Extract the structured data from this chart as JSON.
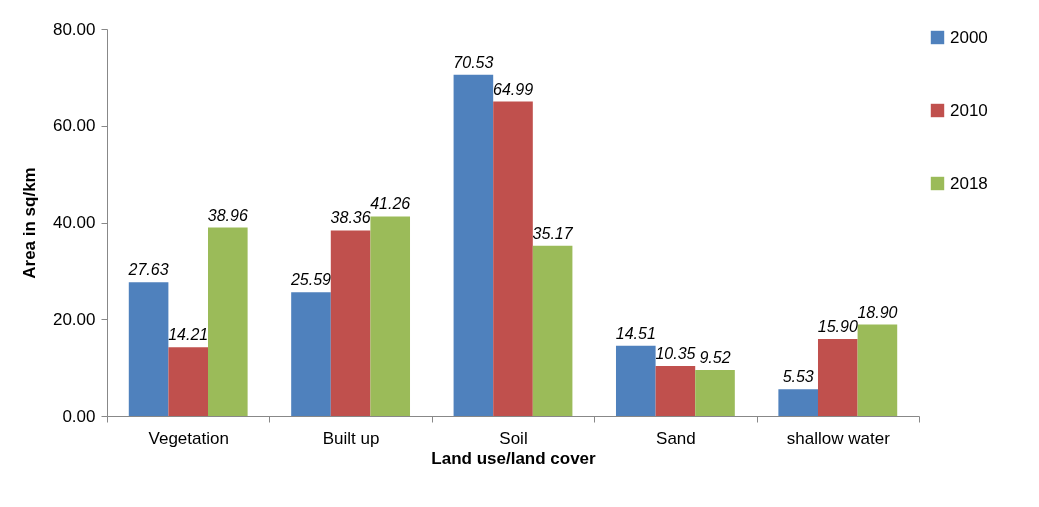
{
  "chart_data": {
    "type": "bar",
    "xlabel": "Land use/land cover",
    "ylabel": "Area in sq/km",
    "categories": [
      "Vegetation",
      "Built up",
      "Soil",
      "Sand",
      "shallow water"
    ],
    "series": [
      {
        "name": "2000",
        "color": "#4f81bd",
        "values": [
          27.63,
          25.59,
          70.53,
          14.51,
          5.53
        ],
        "value_labels": [
          "27.63",
          "25.59",
          "70.53",
          "14.51",
          "5.53"
        ]
      },
      {
        "name": "2010",
        "color": "#c0504d",
        "values": [
          14.21,
          38.36,
          64.99,
          10.35,
          15.9
        ],
        "value_labels": [
          "14.21",
          "38.36",
          "64.99",
          "10.35",
          "15.90"
        ]
      },
      {
        "name": "2018",
        "color": "#9bbb59",
        "values": [
          38.96,
          41.26,
          35.17,
          9.52,
          18.9
        ],
        "value_labels": [
          "38.96",
          "41.26",
          "35.17",
          "9.52",
          "18.90"
        ]
      }
    ],
    "ylim": [
      0,
      80
    ],
    "yticks": [
      {
        "value": 0,
        "label": "0.00"
      },
      {
        "value": 20,
        "label": "20.00"
      },
      {
        "value": 40,
        "label": "40.00"
      },
      {
        "value": 60,
        "label": "60.00"
      },
      {
        "value": 80,
        "label": "80.00"
      }
    ],
    "grid": false,
    "legend": "right"
  }
}
